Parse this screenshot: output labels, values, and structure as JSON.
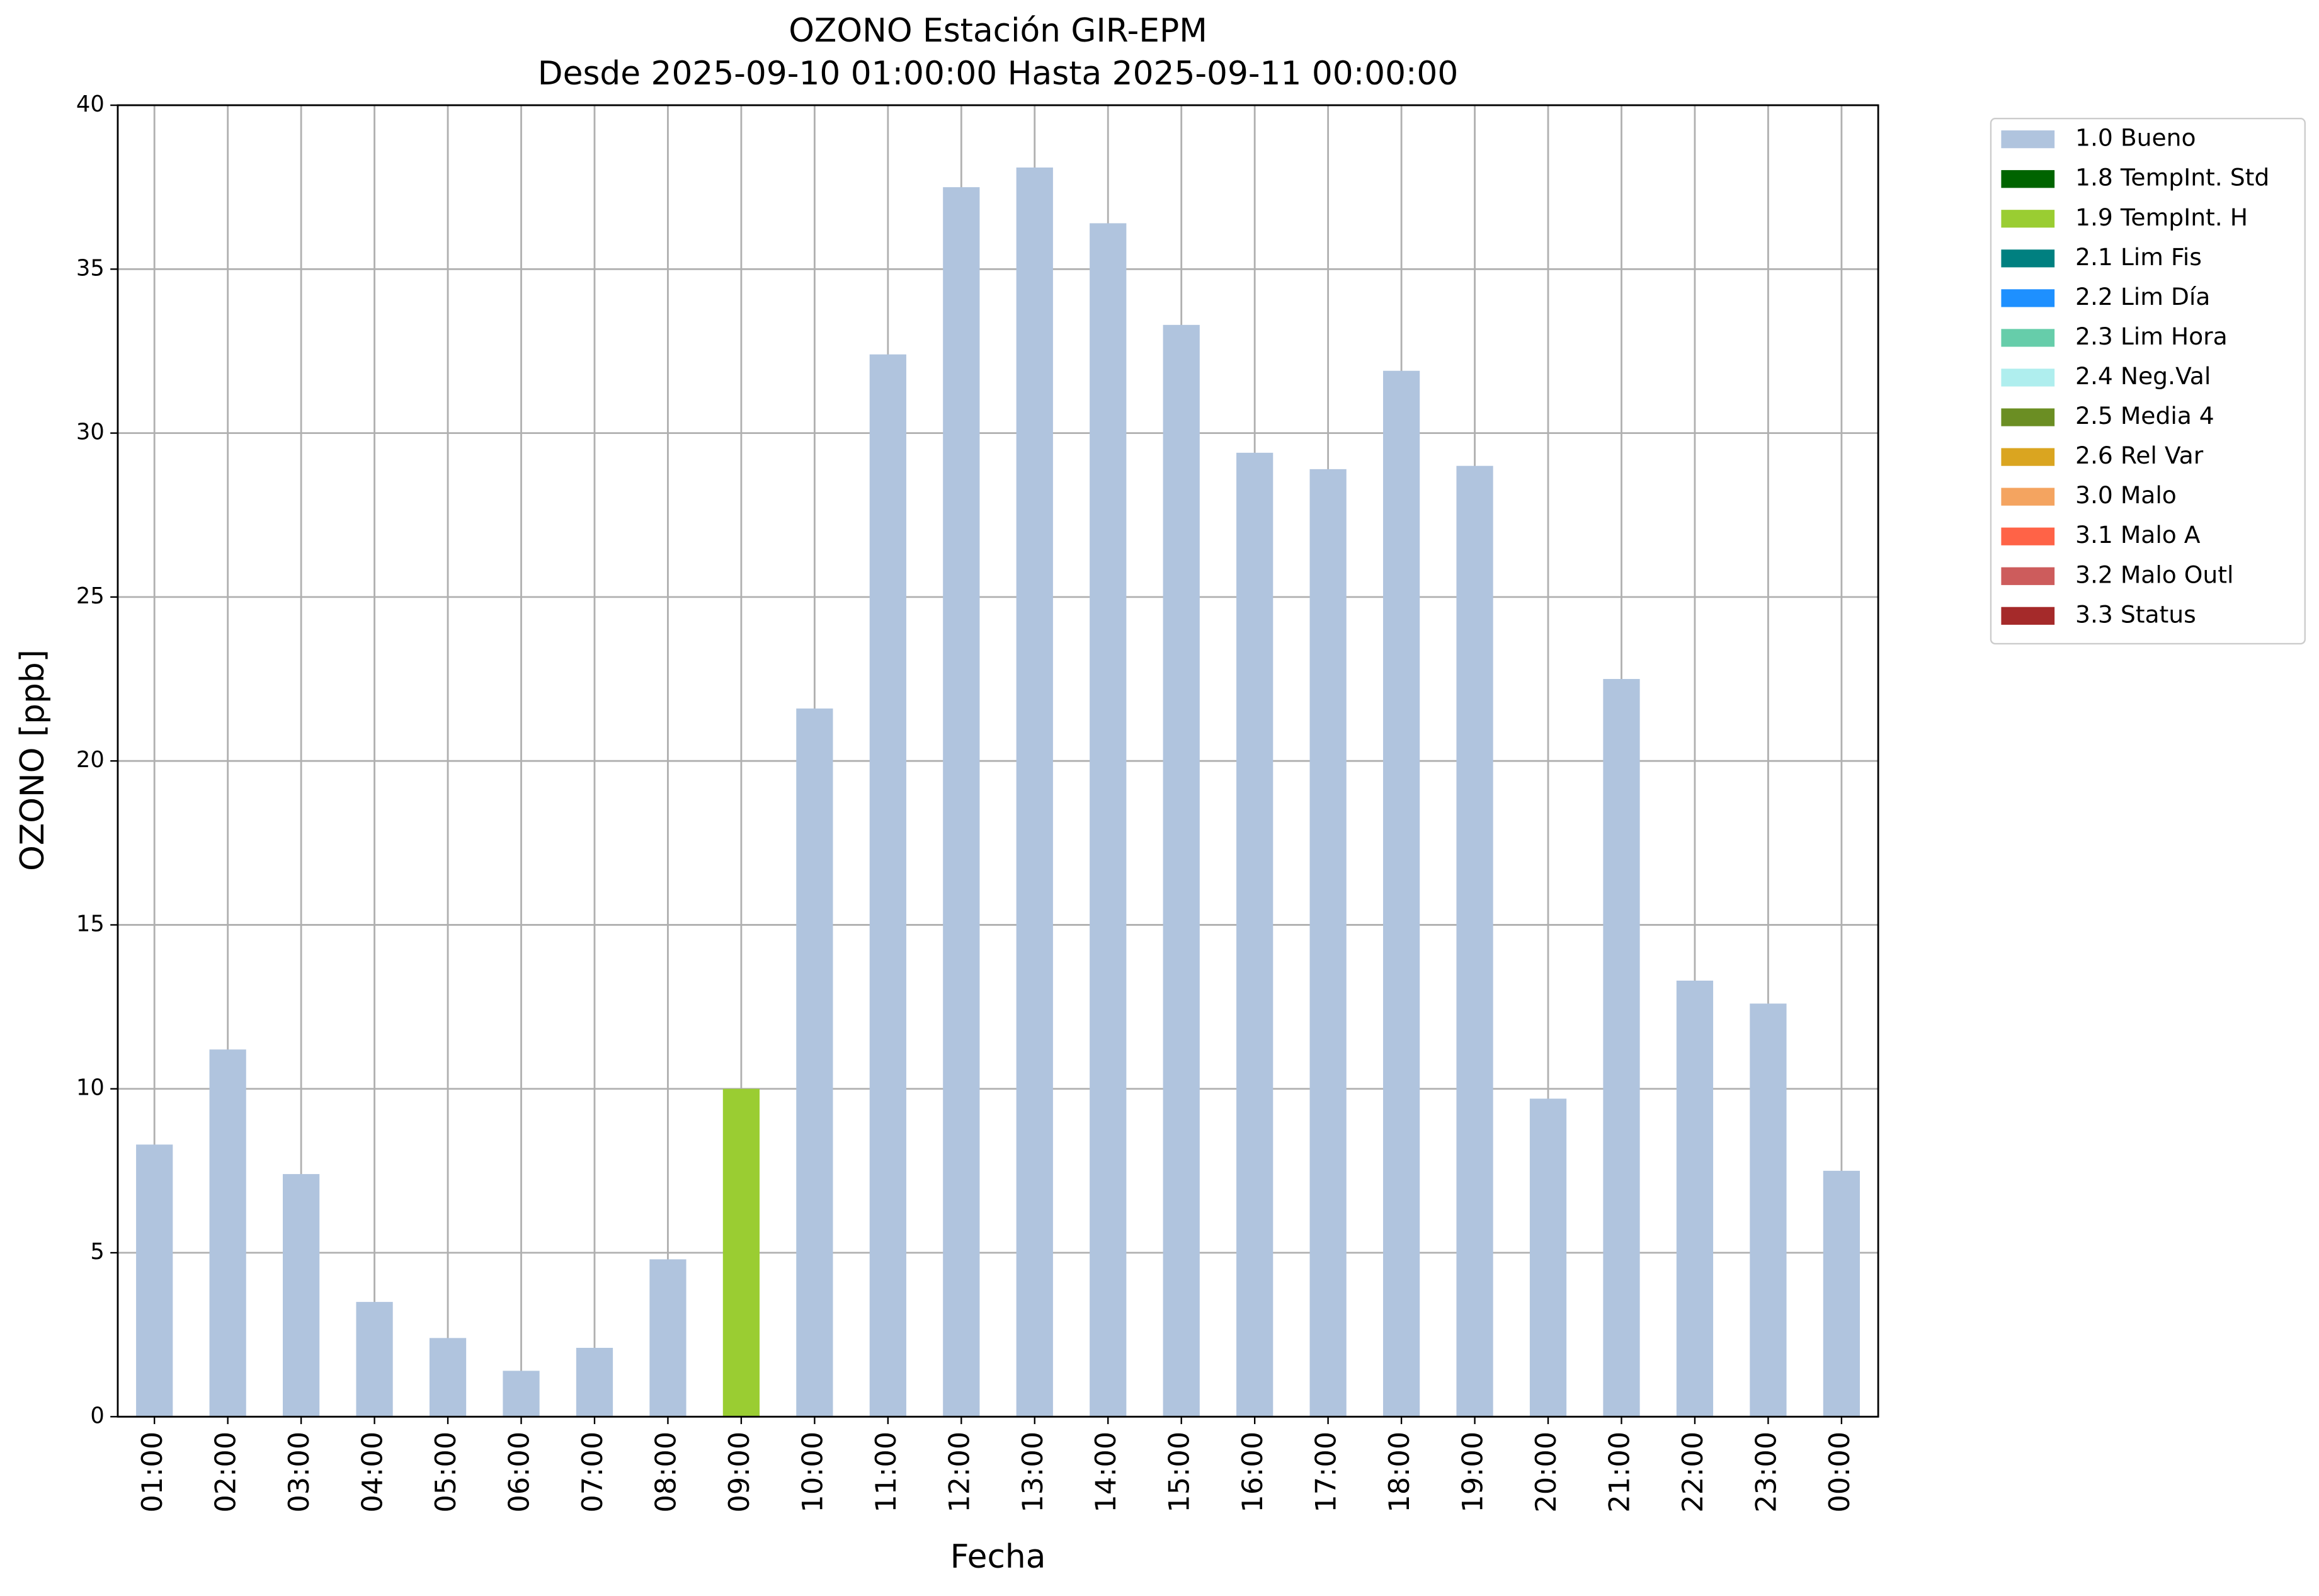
{
  "chart_data": {
    "type": "bar",
    "stacked": true,
    "title": "OZONO Estación GIR-EPM",
    "subtitle": "Desde 2025-09-10 01:00:00 Hasta 2025-09-11 00:00:00",
    "x_label": "Fecha",
    "y_label": "OZONO [ppb]",
    "categories": [
      "01:00",
      "02:00",
      "03:00",
      "04:00",
      "05:00",
      "06:00",
      "07:00",
      "08:00",
      "09:00",
      "10:00",
      "11:00",
      "12:00",
      "13:00",
      "14:00",
      "15:00",
      "16:00",
      "17:00",
      "18:00",
      "19:00",
      "20:00",
      "21:00",
      "22:00",
      "23:00",
      "00:00"
    ],
    "ylim": [
      0,
      40
    ],
    "yticks": [
      0,
      5,
      10,
      15,
      20,
      25,
      30,
      35,
      40
    ],
    "grid": true,
    "legend": "outside-right",
    "series": [
      {
        "name": "1.0 Bueno",
        "color": "#b0c4de",
        "values": [
          8.3,
          11.2,
          7.4,
          3.5,
          2.4,
          1.4,
          2.1,
          4.8,
          null,
          21.6,
          32.4,
          37.5,
          38.1,
          36.4,
          33.3,
          29.4,
          28.9,
          31.9,
          29.0,
          9.7,
          22.5,
          13.3,
          12.6,
          7.5
        ]
      },
      {
        "name": "1.8 TempInt. Std",
        "color": "#006400",
        "values": [
          null,
          null,
          null,
          null,
          null,
          null,
          null,
          null,
          null,
          null,
          null,
          null,
          null,
          null,
          null,
          null,
          null,
          null,
          null,
          null,
          null,
          null,
          null,
          null
        ]
      },
      {
        "name": "1.9 TempInt. H",
        "color": "#9acd32",
        "values": [
          null,
          null,
          null,
          null,
          null,
          null,
          null,
          null,
          10.0,
          null,
          null,
          null,
          null,
          null,
          null,
          null,
          null,
          null,
          null,
          null,
          null,
          null,
          null,
          null
        ]
      },
      {
        "name": "2.1 Lim Fis",
        "color": "#008080",
        "values": [
          null,
          null,
          null,
          null,
          null,
          null,
          null,
          null,
          null,
          null,
          null,
          null,
          null,
          null,
          null,
          null,
          null,
          null,
          null,
          null,
          null,
          null,
          null,
          null
        ]
      },
      {
        "name": "2.2 Lim Día",
        "color": "#1e90ff",
        "values": [
          null,
          null,
          null,
          null,
          null,
          null,
          null,
          null,
          null,
          null,
          null,
          null,
          null,
          null,
          null,
          null,
          null,
          null,
          null,
          null,
          null,
          null,
          null,
          null
        ]
      },
      {
        "name": "2.3 Lim Hora",
        "color": "#66cdaa",
        "values": [
          null,
          null,
          null,
          null,
          null,
          null,
          null,
          null,
          null,
          null,
          null,
          null,
          null,
          null,
          null,
          null,
          null,
          null,
          null,
          null,
          null,
          null,
          null,
          null
        ]
      },
      {
        "name": "2.4 Neg.Val",
        "color": "#afeeee",
        "values": [
          null,
          null,
          null,
          null,
          null,
          null,
          null,
          null,
          null,
          null,
          null,
          null,
          null,
          null,
          null,
          null,
          null,
          null,
          null,
          null,
          null,
          null,
          null,
          null
        ]
      },
      {
        "name": "2.5 Media 4",
        "color": "#6b8e23",
        "values": [
          null,
          null,
          null,
          null,
          null,
          null,
          null,
          null,
          null,
          null,
          null,
          null,
          null,
          null,
          null,
          null,
          null,
          null,
          null,
          null,
          null,
          null,
          null,
          null
        ]
      },
      {
        "name": "2.6 Rel Var",
        "color": "#daa520",
        "values": [
          null,
          null,
          null,
          null,
          null,
          null,
          null,
          null,
          null,
          null,
          null,
          null,
          null,
          null,
          null,
          null,
          null,
          null,
          null,
          null,
          null,
          null,
          null,
          null
        ]
      },
      {
        "name": "3.0 Malo",
        "color": "#f4a460",
        "values": [
          null,
          null,
          null,
          null,
          null,
          null,
          null,
          null,
          null,
          null,
          null,
          null,
          null,
          null,
          null,
          null,
          null,
          null,
          null,
          null,
          null,
          null,
          null,
          null
        ]
      },
      {
        "name": "3.1 Malo A",
        "color": "#ff6347",
        "values": [
          null,
          null,
          null,
          null,
          null,
          null,
          null,
          null,
          null,
          null,
          null,
          null,
          null,
          null,
          null,
          null,
          null,
          null,
          null,
          null,
          null,
          null,
          null,
          null
        ]
      },
      {
        "name": "3.2 Malo Outl",
        "color": "#cd5c5c",
        "values": [
          null,
          null,
          null,
          null,
          null,
          null,
          null,
          null,
          null,
          null,
          null,
          null,
          null,
          null,
          null,
          null,
          null,
          null,
          null,
          null,
          null,
          null,
          null,
          null
        ]
      },
      {
        "name": "3.3 Status",
        "color": "#a52a2a",
        "values": [
          null,
          null,
          null,
          null,
          null,
          null,
          null,
          null,
          null,
          null,
          null,
          null,
          null,
          null,
          null,
          null,
          null,
          null,
          null,
          null,
          null,
          null,
          null,
          null
        ]
      }
    ]
  }
}
